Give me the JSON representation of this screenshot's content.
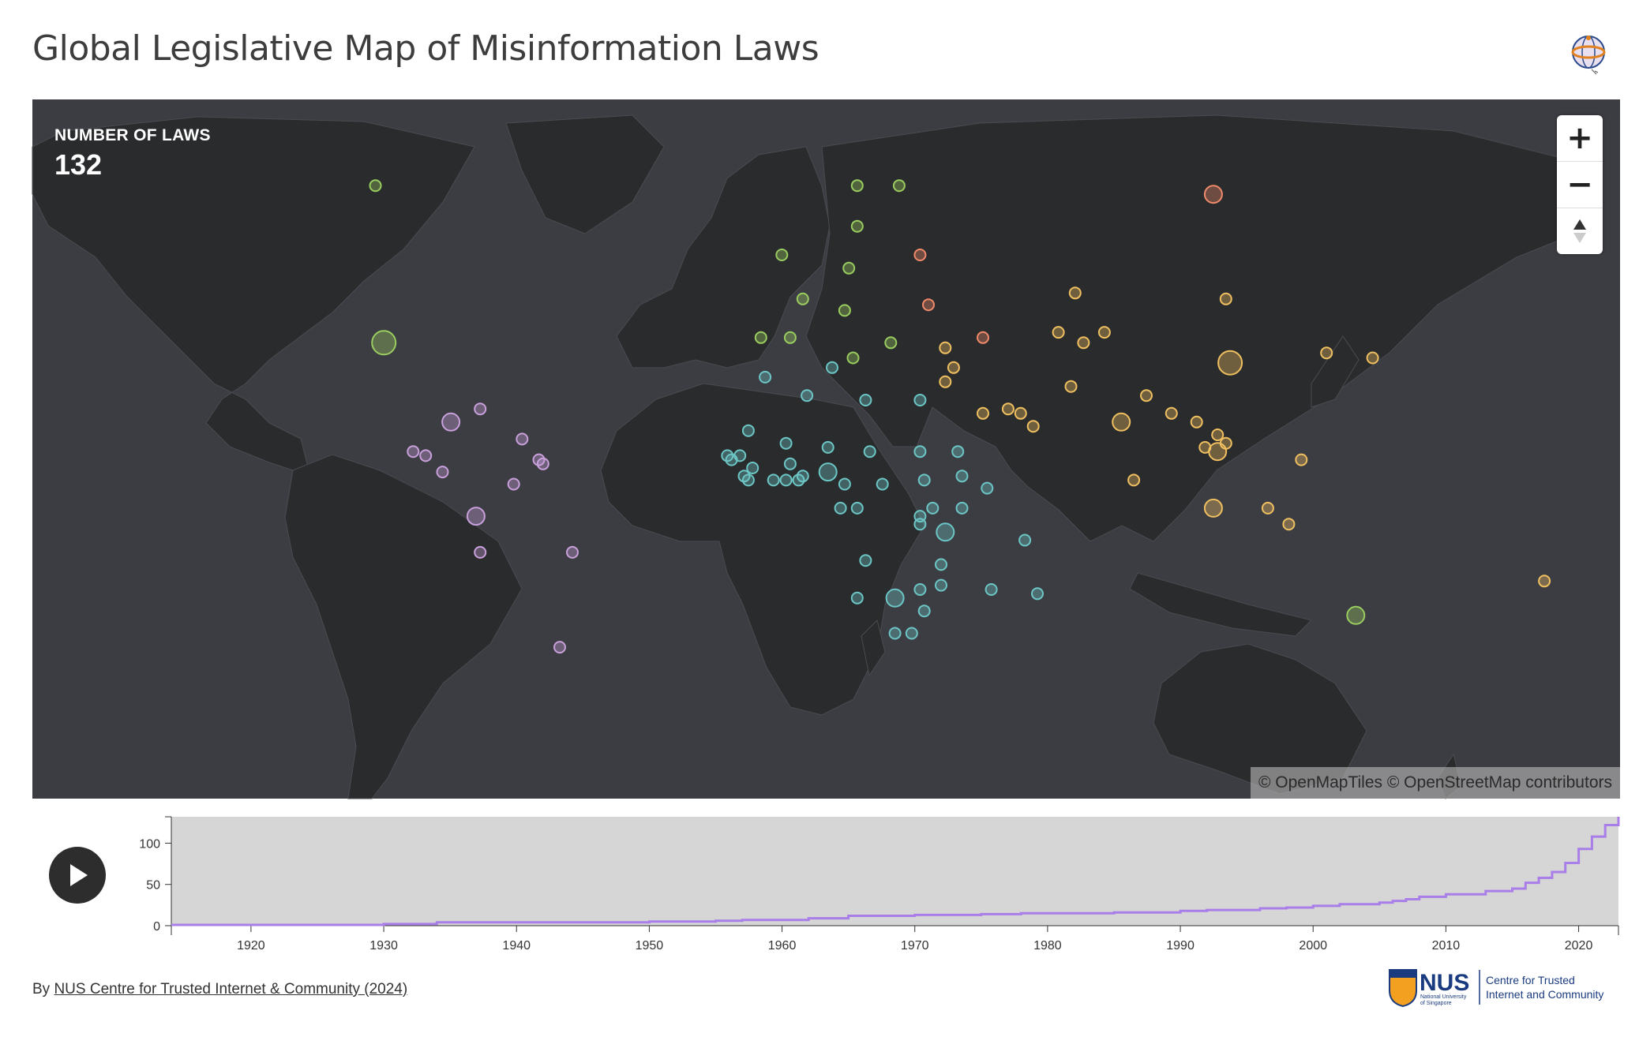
{
  "title": "Global Legislative Map of Misinformation Laws",
  "counter": {
    "label": "NUMBER OF LAWS",
    "value": "132"
  },
  "zoom": {
    "in_label": "+",
    "out_label": "−"
  },
  "attribution": {
    "part1": "© OpenMapTiles",
    "part2": "© OpenStreetMap contributors"
  },
  "credit": {
    "prefix": "By ",
    "link_text": "NUS Centre for Trusted Internet & Community (2024)"
  },
  "nus_logo": {
    "mark": "NUS",
    "sub1": "National University",
    "sub2": "of Singapore",
    "line1": "Centre for Trusted",
    "line2": "Internet and Community"
  },
  "icons": [
    "globe-logo-icon",
    "zoom-in-icon",
    "zoom-out-icon",
    "compass-icon",
    "play-icon",
    "nus-crest-icon"
  ],
  "colors": {
    "map_background": "#3c3d42",
    "land": "#2a2b2d",
    "americas": "#c9a0dc",
    "europe_oceania": "#9acd5f",
    "africa": "#6cc6c6",
    "asia": "#f0c060",
    "eastern_europe": "#f08a6a",
    "timeline_line": "#a97ee8",
    "timeline_bg": "#d6d6d6"
  },
  "markers": [
    {
      "lon": -98,
      "lat": 39,
      "size": 3,
      "region": "europe_oceania"
    },
    {
      "lon": -100,
      "lat": 63,
      "size": 1,
      "region": "europe_oceania"
    },
    {
      "lon": -3,
      "lat": 54,
      "size": 1,
      "region": "europe_oceania"
    },
    {
      "lon": 15,
      "lat": 63,
      "size": 1,
      "region": "europe_oceania"
    },
    {
      "lon": 25,
      "lat": 63,
      "size": 1,
      "region": "europe_oceania"
    },
    {
      "lon": 15,
      "lat": 58,
      "size": 1,
      "region": "europe_oceania"
    },
    {
      "lon": 13,
      "lat": 52,
      "size": 1,
      "region": "europe_oceania"
    },
    {
      "lon": 2,
      "lat": 47,
      "size": 1,
      "region": "europe_oceania"
    },
    {
      "lon": 12,
      "lat": 45,
      "size": 1,
      "region": "europe_oceania"
    },
    {
      "lon": -8,
      "lat": 40,
      "size": 1,
      "region": "europe_oceania"
    },
    {
      "lon": -1,
      "lat": 40,
      "size": 1,
      "region": "europe_oceania"
    },
    {
      "lon": 14,
      "lat": 36,
      "size": 1,
      "region": "europe_oceania"
    },
    {
      "lon": 23,
      "lat": 39,
      "size": 1,
      "region": "europe_oceania"
    },
    {
      "lon": 134,
      "lat": -25,
      "size": 2,
      "region": "europe_oceania"
    },
    {
      "lon": 30,
      "lat": 54,
      "size": 1,
      "region": "eastern_europe"
    },
    {
      "lon": 32,
      "lat": 46,
      "size": 1,
      "region": "eastern_europe"
    },
    {
      "lon": 100,
      "lat": 62,
      "size": 2,
      "region": "eastern_europe"
    },
    {
      "lon": 45,
      "lat": 40,
      "size": 1,
      "region": "eastern_europe"
    },
    {
      "lon": -82,
      "lat": 22,
      "size": 2,
      "region": "americas"
    },
    {
      "lon": -75,
      "lat": 25,
      "size": 1,
      "region": "americas"
    },
    {
      "lon": -65,
      "lat": 18,
      "size": 1,
      "region": "americas"
    },
    {
      "lon": -91,
      "lat": 15,
      "size": 1,
      "region": "americas"
    },
    {
      "lon": -88,
      "lat": 14,
      "size": 1,
      "region": "americas"
    },
    {
      "lon": -84,
      "lat": 10,
      "size": 1,
      "region": "americas"
    },
    {
      "lon": -61,
      "lat": 13,
      "size": 1,
      "region": "americas"
    },
    {
      "lon": -60,
      "lat": 12,
      "size": 1,
      "region": "americas"
    },
    {
      "lon": -67,
      "lat": 7,
      "size": 1,
      "region": "americas"
    },
    {
      "lon": -76,
      "lat": -1,
      "size": 2,
      "region": "americas"
    },
    {
      "lon": -75,
      "lat": -10,
      "size": 1,
      "region": "americas"
    },
    {
      "lon": -53,
      "lat": -10,
      "size": 1,
      "region": "americas"
    },
    {
      "lon": -56,
      "lat": -32,
      "size": 1,
      "region": "americas"
    },
    {
      "lon": -7,
      "lat": 32,
      "size": 1,
      "region": "africa"
    },
    {
      "lon": 9,
      "lat": 34,
      "size": 1,
      "region": "africa"
    },
    {
      "lon": 3,
      "lat": 28,
      "size": 1,
      "region": "africa"
    },
    {
      "lon": 17,
      "lat": 27,
      "size": 1,
      "region": "africa"
    },
    {
      "lon": 30,
      "lat": 27,
      "size": 1,
      "region": "africa"
    },
    {
      "lon": -11,
      "lat": 20,
      "size": 1,
      "region": "africa"
    },
    {
      "lon": -2,
      "lat": 17,
      "size": 1,
      "region": "africa"
    },
    {
      "lon": 8,
      "lat": 16,
      "size": 1,
      "region": "africa"
    },
    {
      "lon": 18,
      "lat": 15,
      "size": 1,
      "region": "africa"
    },
    {
      "lon": 30,
      "lat": 15,
      "size": 1,
      "region": "africa"
    },
    {
      "lon": 39,
      "lat": 15,
      "size": 1,
      "region": "africa"
    },
    {
      "lon": -16,
      "lat": 14,
      "size": 1,
      "region": "africa"
    },
    {
      "lon": -15,
      "lat": 13,
      "size": 1,
      "region": "africa"
    },
    {
      "lon": -13,
      "lat": 14,
      "size": 1,
      "region": "africa"
    },
    {
      "lon": -10,
      "lat": 11,
      "size": 1,
      "region": "africa"
    },
    {
      "lon": -1,
      "lat": 12,
      "size": 1,
      "region": "africa"
    },
    {
      "lon": 8,
      "lat": 10,
      "size": 2,
      "region": "africa"
    },
    {
      "lon": -12,
      "lat": 9,
      "size": 1,
      "region": "africa"
    },
    {
      "lon": -11,
      "lat": 8,
      "size": 1,
      "region": "africa"
    },
    {
      "lon": -5,
      "lat": 8,
      "size": 1,
      "region": "africa"
    },
    {
      "lon": -2,
      "lat": 8,
      "size": 1,
      "region": "africa"
    },
    {
      "lon": 1,
      "lat": 8,
      "size": 1,
      "region": "africa"
    },
    {
      "lon": 2,
      "lat": 9,
      "size": 1,
      "region": "africa"
    },
    {
      "lon": 12,
      "lat": 7,
      "size": 1,
      "region": "africa"
    },
    {
      "lon": 21,
      "lat": 7,
      "size": 1,
      "region": "africa"
    },
    {
      "lon": 31,
      "lat": 8,
      "size": 1,
      "region": "africa"
    },
    {
      "lon": 40,
      "lat": 9,
      "size": 1,
      "region": "africa"
    },
    {
      "lon": 46,
      "lat": 6,
      "size": 1,
      "region": "africa"
    },
    {
      "lon": 11,
      "lat": 1,
      "size": 1,
      "region": "africa"
    },
    {
      "lon": 15,
      "lat": 1,
      "size": 1,
      "region": "africa"
    },
    {
      "lon": 30,
      "lat": -1,
      "size": 1,
      "region": "africa"
    },
    {
      "lon": 30,
      "lat": -3,
      "size": 1,
      "region": "africa"
    },
    {
      "lon": 33,
      "lat": 1,
      "size": 1,
      "region": "africa"
    },
    {
      "lon": 40,
      "lat": 1,
      "size": 1,
      "region": "africa"
    },
    {
      "lon": 36,
      "lat": -5,
      "size": 2,
      "region": "africa"
    },
    {
      "lon": 17,
      "lat": -12,
      "size": 1,
      "region": "africa"
    },
    {
      "lon": 35,
      "lat": -13,
      "size": 1,
      "region": "africa"
    },
    {
      "lon": 47,
      "lat": -19,
      "size": 1,
      "region": "africa"
    },
    {
      "lon": 55,
      "lat": -7,
      "size": 1,
      "region": "africa"
    },
    {
      "lon": 58,
      "lat": -20,
      "size": 1,
      "region": "africa"
    },
    {
      "lon": 35,
      "lat": -18,
      "size": 1,
      "region": "africa"
    },
    {
      "lon": 30,
      "lat": -19,
      "size": 1,
      "region": "africa"
    },
    {
      "lon": 15,
      "lat": -21,
      "size": 1,
      "region": "africa"
    },
    {
      "lon": 24,
      "lat": -21,
      "size": 2,
      "region": "africa"
    },
    {
      "lon": 31,
      "lat": -24,
      "size": 1,
      "region": "africa"
    },
    {
      "lon": 24,
      "lat": -29,
      "size": 1,
      "region": "africa"
    },
    {
      "lon": 28,
      "lat": -29,
      "size": 1,
      "region": "africa"
    },
    {
      "lon": 36,
      "lat": 38,
      "size": 1,
      "region": "asia"
    },
    {
      "lon": 38,
      "lat": 34,
      "size": 1,
      "region": "asia"
    },
    {
      "lon": 36,
      "lat": 31,
      "size": 1,
      "region": "asia"
    },
    {
      "lon": 45,
      "lat": 24,
      "size": 1,
      "region": "asia"
    },
    {
      "lon": 51,
      "lat": 25,
      "size": 1,
      "region": "asia"
    },
    {
      "lon": 54,
      "lat": 24,
      "size": 1,
      "region": "asia"
    },
    {
      "lon": 57,
      "lat": 21,
      "size": 1,
      "region": "asia"
    },
    {
      "lon": 67,
      "lat": 48,
      "size": 1,
      "region": "asia"
    },
    {
      "lon": 63,
      "lat": 41,
      "size": 1,
      "region": "asia"
    },
    {
      "lon": 69,
      "lat": 39,
      "size": 1,
      "region": "asia"
    },
    {
      "lon": 74,
      "lat": 41,
      "size": 1,
      "region": "asia"
    },
    {
      "lon": 66,
      "lat": 30,
      "size": 1,
      "region": "asia"
    },
    {
      "lon": 78,
      "lat": 22,
      "size": 2,
      "region": "asia"
    },
    {
      "lon": 84,
      "lat": 28,
      "size": 1,
      "region": "asia"
    },
    {
      "lon": 90,
      "lat": 24,
      "size": 1,
      "region": "asia"
    },
    {
      "lon": 81,
      "lat": 8,
      "size": 1,
      "region": "asia"
    },
    {
      "lon": 96,
      "lat": 22,
      "size": 1,
      "region": "asia"
    },
    {
      "lon": 101,
      "lat": 15,
      "size": 2,
      "region": "asia"
    },
    {
      "lon": 101,
      "lat": 19,
      "size": 1,
      "region": "asia"
    },
    {
      "lon": 98,
      "lat": 16,
      "size": 1,
      "region": "asia"
    },
    {
      "lon": 103,
      "lat": 17,
      "size": 1,
      "region": "asia"
    },
    {
      "lon": 100,
      "lat": 1,
      "size": 2,
      "region": "asia"
    },
    {
      "lon": 113,
      "lat": 1,
      "size": 1,
      "region": "asia"
    },
    {
      "lon": 121,
      "lat": 13,
      "size": 1,
      "region": "asia"
    },
    {
      "lon": 118,
      "lat": -3,
      "size": 1,
      "region": "asia"
    },
    {
      "lon": 104,
      "lat": 35,
      "size": 3,
      "region": "asia"
    },
    {
      "lon": 103,
      "lat": 47,
      "size": 1,
      "region": "asia"
    },
    {
      "lon": 127,
      "lat": 37,
      "size": 1,
      "region": "asia"
    },
    {
      "lon": 138,
      "lat": 36,
      "size": 1,
      "region": "asia"
    },
    {
      "lon": 179,
      "lat": -17,
      "size": 1,
      "region": "asia"
    }
  ],
  "timeline": {
    "y_ticks": [
      "100",
      "50",
      "0"
    ],
    "x_ticks": [
      "1920",
      "1930",
      "1940",
      "1950",
      "1960",
      "1970",
      "1980",
      "1990",
      "2000",
      "2010",
      "2020"
    ]
  },
  "chart_data": {
    "type": "line",
    "title": "",
    "xlabel": "",
    "ylabel": "",
    "xlim": [
      1914,
      2023
    ],
    "ylim": [
      0,
      132
    ],
    "step": true,
    "series": [
      {
        "x": [
          1914,
          1930,
          1934,
          1950,
          1955,
          1957,
          1962,
          1965,
          1970,
          1975,
          1978,
          1985,
          1990,
          1992,
          1996,
          1998,
          2000,
          2002,
          2005,
          2006,
          2007,
          2008,
          2010,
          2013,
          2015,
          2016,
          2017,
          2018,
          2019,
          2020,
          2021,
          2022,
          2023
        ],
        "y": [
          1,
          2,
          4,
          5,
          6,
          7,
          9,
          12,
          13,
          14,
          15,
          16,
          18,
          19,
          21,
          22,
          24,
          26,
          28,
          30,
          32,
          35,
          38,
          42,
          45,
          52,
          58,
          65,
          76,
          93,
          108,
          122,
          132
        ]
      }
    ]
  }
}
